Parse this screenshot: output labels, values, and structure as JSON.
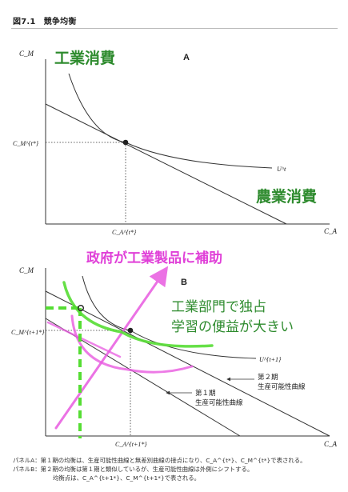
{
  "figure": {
    "title": "図7.1　競争均衡"
  },
  "panel_a": {
    "letter": "A",
    "y_axis_label": "C_M",
    "x_axis_label": "C_A",
    "y_star_label": "C_M^{t*}",
    "x_star_label": "C_A^{t*}",
    "curve_label": "U^t",
    "handwritten_top": "工業消費",
    "handwritten_right": "農業消費"
  },
  "panel_b": {
    "letter": "B",
    "y_axis_label": "C_M",
    "x_axis_label": "C_A",
    "y_star_label": "C_M^{t+1*}",
    "x_star_label": "C_A^{t+1*}",
    "curve_label": "U^{t+1}",
    "period2_label_line1": "第２期",
    "period2_label_line2": "生産可能性曲線",
    "period1_label_line1": "第１期",
    "period1_label_line2": "生産可能性曲線",
    "handwritten_top": "政府が工業製品に補助",
    "handwritten_middle_line1": "工業部門で独占",
    "handwritten_middle_line2": "学習の便益が大きい"
  },
  "caption": {
    "line1": "パネルA：第１期の均衡は、生産可能性曲線と無差別曲線の接点になり、C_A^{t*}、C_M^{t*}で表される。",
    "line2": "パネルB：第２期の均衡は第１期と類似しているが、生産可能性曲線は外側にシフトする。",
    "line3": "均衡点は、C_A^{t+1*}、C_M^{t+1*}で表される。"
  },
  "colors": {
    "axis": "#333333",
    "annotation_green": "#2e8b2e",
    "annotation_pink": "#e040d8",
    "marker_green": "#55dd33",
    "marker_pink": "#e85ae0"
  }
}
